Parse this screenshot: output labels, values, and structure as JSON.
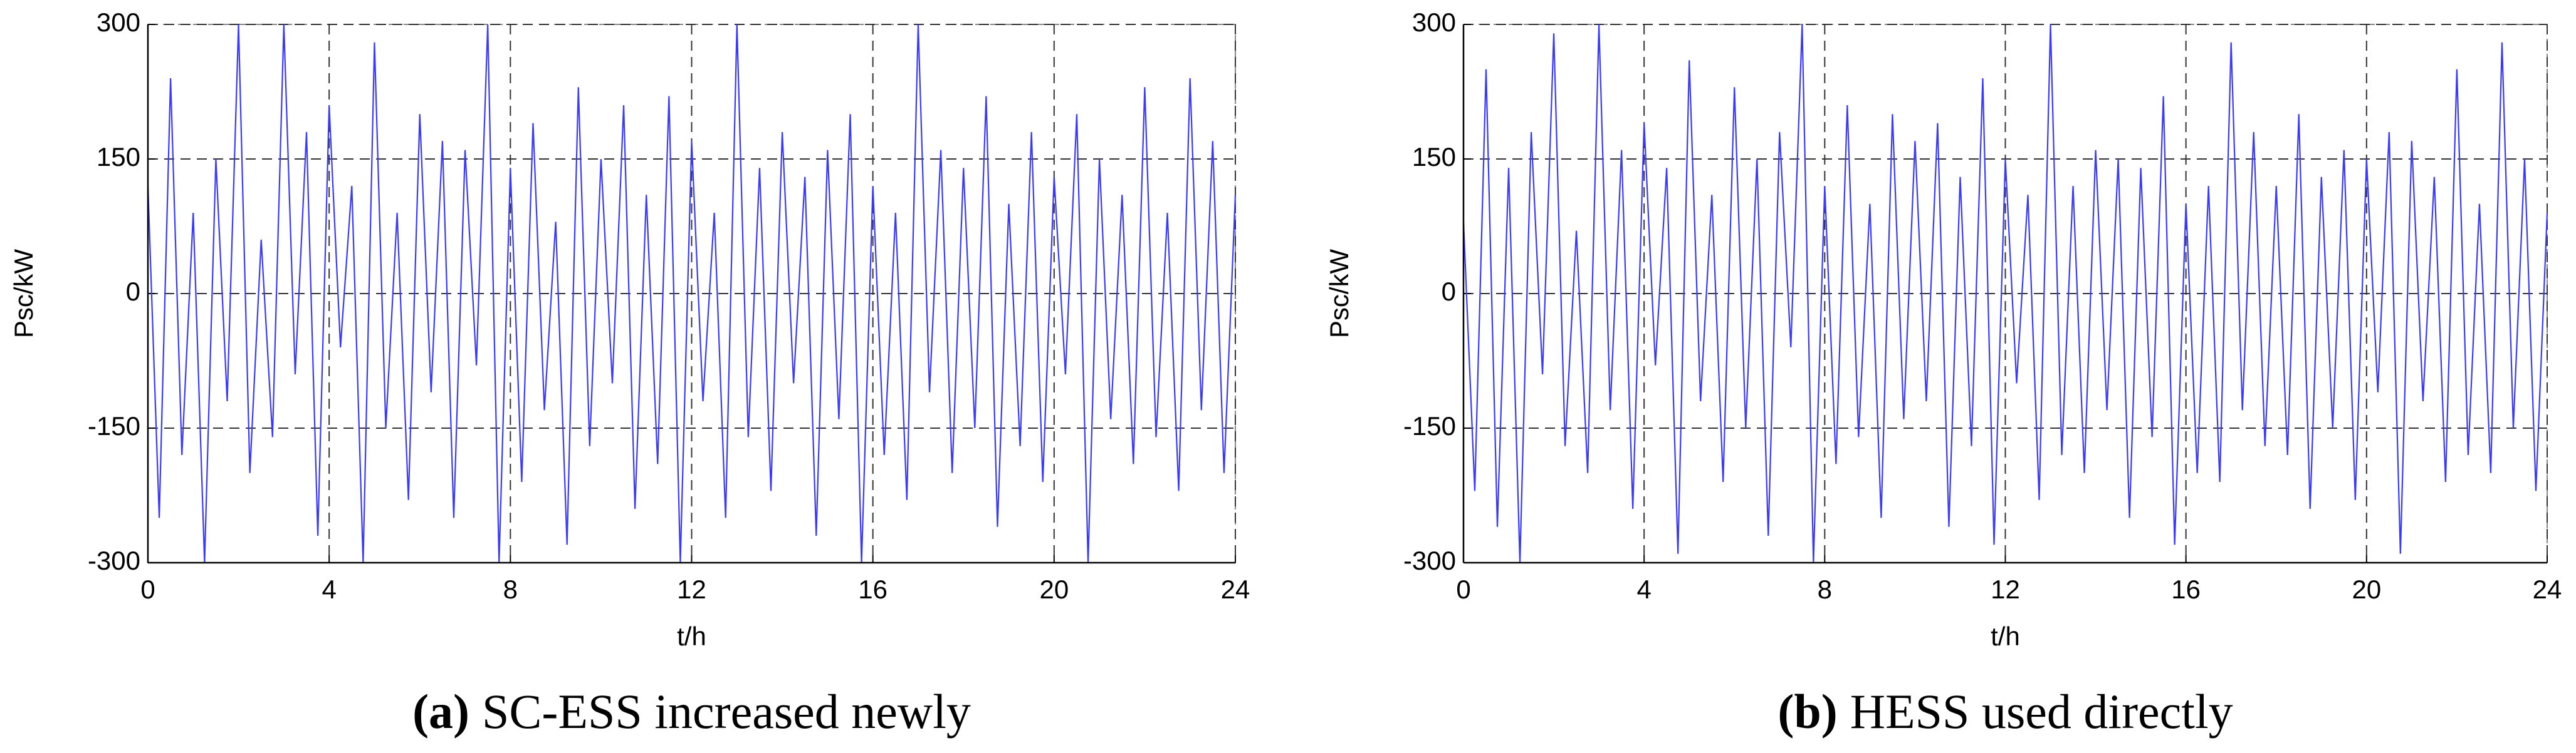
{
  "chart_data": [
    {
      "type": "line",
      "ylabel": "Psc/kW",
      "xlabel": "t/h",
      "caption_label": "(a)",
      "caption": "SC-ESS increased newly",
      "x": [
        0,
        0.25,
        0.5,
        0.75,
        1,
        1.25,
        1.5,
        1.75,
        2,
        2.25,
        2.5,
        2.75,
        3,
        3.25,
        3.5,
        3.75,
        4,
        4.25,
        4.5,
        4.75,
        5,
        5.25,
        5.5,
        5.75,
        6,
        6.25,
        6.5,
        6.75,
        7,
        7.25,
        7.5,
        7.75,
        8,
        8.25,
        8.5,
        8.75,
        9,
        9.25,
        9.5,
        9.75,
        10,
        10.25,
        10.5,
        10.75,
        11,
        11.25,
        11.5,
        11.75,
        12,
        12.25,
        12.5,
        12.75,
        13,
        13.25,
        13.5,
        13.75,
        14,
        14.25,
        14.5,
        14.75,
        15,
        15.25,
        15.5,
        15.75,
        16,
        16.25,
        16.5,
        16.75,
        17,
        17.25,
        17.5,
        17.75,
        18,
        18.25,
        18.5,
        18.75,
        19,
        19.25,
        19.5,
        19.75,
        20,
        20.25,
        20.5,
        20.75,
        21,
        21.25,
        21.5,
        21.75,
        22,
        22.25,
        22.5,
        22.75,
        23,
        23.25,
        23.5,
        23.75,
        24
      ],
      "series": [
        {
          "color": "#3a3aff",
          "values": [
            120,
            -250,
            240,
            -180,
            90,
            -300,
            150,
            -120,
            300,
            -200,
            60,
            -160,
            300,
            -90,
            180,
            -270,
            210,
            -60,
            120,
            -300,
            280,
            -150,
            90,
            -230,
            200,
            -110,
            170,
            -250,
            160,
            -80,
            300,
            -300,
            140,
            -210,
            190,
            -130,
            80,
            -280,
            230,
            -170,
            150,
            -100,
            210,
            -240,
            110,
            -190,
            220,
            -300,
            170,
            -120,
            90,
            -250,
            300,
            -160,
            140,
            -220,
            180,
            -100,
            130,
            -270,
            160,
            -140,
            200,
            -300,
            120,
            -180,
            90,
            -230,
            300,
            -110,
            160,
            -200,
            140,
            -150,
            220,
            -260,
            100,
            -170,
            180,
            -210,
            130,
            -90,
            200,
            -300,
            150,
            -140,
            110,
            -190,
            230,
            -160,
            90,
            -220,
            240,
            -130,
            170,
            -200,
            110
          ]
        }
      ],
      "xlim": [
        0,
        24
      ],
      "xticks": [
        0,
        4,
        8,
        12,
        16,
        20,
        24
      ],
      "ylim": [
        -300,
        300
      ],
      "yticks": [
        -300,
        -150,
        0,
        150,
        300
      ],
      "grid": true
    },
    {
      "type": "line",
      "ylabel": "Psc/kW",
      "xlabel": "t/h",
      "caption_label": "(b)",
      "caption": "HESS used directly",
      "x": [
        0,
        0.25,
        0.5,
        0.75,
        1,
        1.25,
        1.5,
        1.75,
        2,
        2.25,
        2.5,
        2.75,
        3,
        3.25,
        3.5,
        3.75,
        4,
        4.25,
        4.5,
        4.75,
        5,
        5.25,
        5.5,
        5.75,
        6,
        6.25,
        6.5,
        6.75,
        7,
        7.25,
        7.5,
        7.75,
        8,
        8.25,
        8.5,
        8.75,
        9,
        9.25,
        9.5,
        9.75,
        10,
        10.25,
        10.5,
        10.75,
        11,
        11.25,
        11.5,
        11.75,
        12,
        12.25,
        12.5,
        12.75,
        13,
        13.25,
        13.5,
        13.75,
        14,
        14.25,
        14.5,
        14.75,
        15,
        15.25,
        15.5,
        15.75,
        16,
        16.25,
        16.5,
        16.75,
        17,
        17.25,
        17.5,
        17.75,
        18,
        18.25,
        18.5,
        18.75,
        19,
        19.25,
        19.5,
        19.75,
        20,
        20.25,
        20.5,
        20.75,
        21,
        21.25,
        21.5,
        21.75,
        22,
        22.25,
        22.5,
        22.75,
        23,
        23.25,
        23.5,
        23.75,
        24
      ],
      "series": [
        {
          "color": "#3a3aff",
          "values": [
            80,
            -220,
            250,
            -260,
            140,
            -300,
            180,
            -90,
            290,
            -170,
            70,
            -200,
            300,
            -130,
            160,
            -240,
            190,
            -80,
            140,
            -290,
            260,
            -120,
            110,
            -210,
            230,
            -150,
            150,
            -270,
            180,
            -60,
            300,
            -300,
            120,
            -190,
            210,
            -160,
            100,
            -250,
            200,
            -140,
            170,
            -120,
            190,
            -260,
            130,
            -170,
            240,
            -280,
            150,
            -100,
            110,
            -230,
            300,
            -180,
            120,
            -200,
            160,
            -130,
            150,
            -250,
            140,
            -160,
            220,
            -280,
            100,
            -200,
            120,
            -210,
            280,
            -130,
            180,
            -170,
            120,
            -180,
            200,
            -240,
            130,
            -150,
            160,
            -230,
            150,
            -110,
            180,
            -290,
            170,
            -120,
            130,
            -210,
            250,
            -180,
            100,
            -200,
            280,
            -150,
            150,
            -220,
            90
          ]
        }
      ],
      "xlim": [
        0,
        24
      ],
      "xticks": [
        0,
        4,
        8,
        12,
        16,
        20,
        24
      ],
      "ylim": [
        -300,
        300
      ],
      "yticks": [
        -300,
        -150,
        0,
        150,
        300
      ],
      "grid": true
    }
  ]
}
